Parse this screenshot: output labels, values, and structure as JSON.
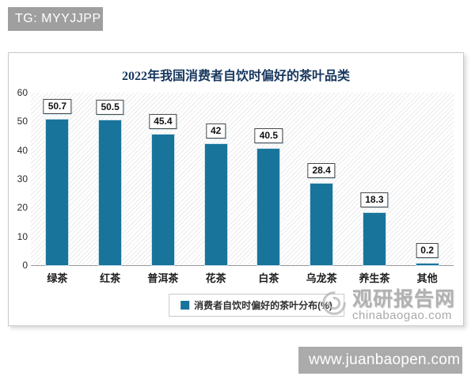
{
  "page": {
    "tg_badge": "TG: MYYJJPP",
    "bottom_bar_url": "www.juanbaopen.com"
  },
  "chart_data": {
    "type": "bar",
    "title": "2022年我国消费者自饮时偏好的茶叶品类",
    "categories": [
      "绿茶",
      "红茶",
      "普洱茶",
      "花茶",
      "白茶",
      "乌龙茶",
      "养生茶",
      "其他"
    ],
    "values": [
      50.7,
      50.5,
      45.4,
      42,
      40.5,
      28.4,
      18.3,
      0.2
    ],
    "legend_label": "消费者自饮时偏好的茶叶分布(%)",
    "legend_position": "bottom",
    "xlabel": "",
    "ylabel": "",
    "ylim": [
      0,
      60
    ],
    "yticks": [
      0,
      10,
      20,
      30,
      40,
      50,
      60
    ],
    "grid": false,
    "bar_color": "#19749b"
  },
  "watermark": {
    "name": "观研报告网",
    "domain": "chinabaogao.com"
  },
  "colors": {
    "bar": "#19749b",
    "title_text": "#17375e",
    "badge_bg": "#9f9f9f",
    "bottom_bar_bg": "#ababab",
    "watermark_text": "#b1b1b1"
  }
}
